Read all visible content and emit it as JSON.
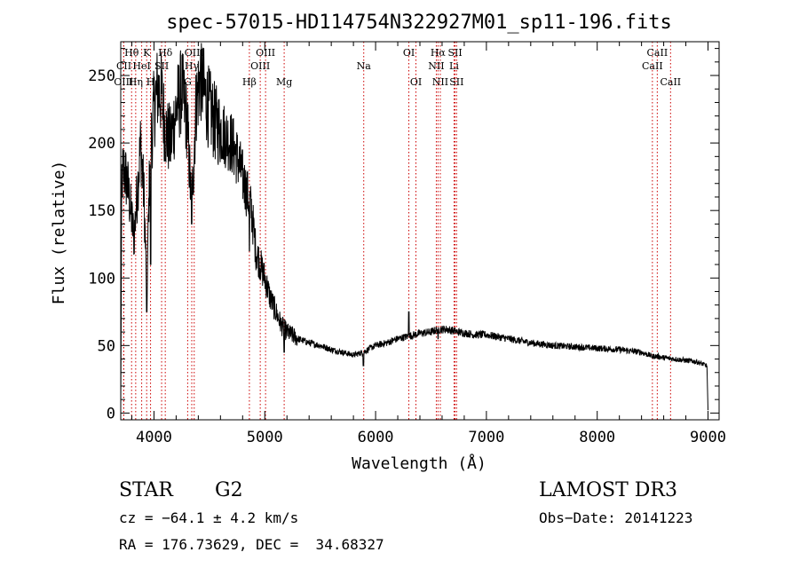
{
  "chart_data": {
    "type": "line",
    "title": "spec-57015-HD114754N322927M01_sp11-196.fits",
    "xlabel": "Wavelength (Å)",
    "ylabel": "Flux (relative)",
    "xlim": [
      3700,
      9100
    ],
    "ylim": [
      -5,
      275
    ],
    "x_ticks": [
      4000,
      5000,
      6000,
      7000,
      8000,
      9000
    ],
    "y_ticks": [
      0,
      50,
      100,
      150,
      200,
      250
    ],
    "grid": false,
    "series_anchors": {
      "x": [
        3700,
        3710,
        3730,
        3760,
        3790,
        3820,
        3850,
        3880,
        3910,
        3935,
        3955,
        3970,
        3985,
        4000,
        4030,
        4070,
        4100,
        4150,
        4200,
        4250,
        4300,
        4340,
        4380,
        4420,
        4460,
        4500,
        4550,
        4600,
        4650,
        4700,
        4750,
        4800,
        4850,
        4880,
        4920,
        4960,
        5000,
        5050,
        5100,
        5150,
        5200,
        5300,
        5400,
        5500,
        5600,
        5700,
        5800,
        5890,
        5950,
        6000,
        6100,
        6200,
        6300,
        6400,
        6500,
        6563,
        6650,
        6750,
        6900,
        7000,
        7200,
        7400,
        7600,
        7800,
        8000,
        8200,
        8400,
        8500,
        8540,
        8600,
        8700,
        8800,
        8900,
        8990,
        9000
      ],
      "y": [
        2,
        175,
        180,
        170,
        150,
        130,
        165,
        200,
        160,
        90,
        160,
        200,
        210,
        225,
        240,
        235,
        210,
        200,
        225,
        240,
        215,
        150,
        230,
        250,
        235,
        225,
        215,
        210,
        205,
        200,
        190,
        175,
        160,
        150,
        120,
        110,
        100,
        85,
        75,
        65,
        60,
        55,
        52,
        50,
        47,
        45,
        43,
        45,
        48,
        50,
        52,
        55,
        57,
        59,
        60,
        62,
        62,
        60,
        58,
        58,
        55,
        52,
        50,
        49,
        48,
        47,
        45,
        42,
        42,
        41,
        40,
        39,
        38,
        35,
        2
      ]
    },
    "spikes": {
      "x": [
        3935,
        3970,
        4340,
        4861,
        5175,
        5890,
        6300,
        6563
      ],
      "y": [
        75,
        110,
        140,
        120,
        45,
        35,
        75,
        55
      ]
    },
    "lines": [
      {
        "label": "Hθ",
        "x": 3798,
        "row": 0
      },
      {
        "label": "CII",
        "x": 3728,
        "row": 1
      },
      {
        "label": "OIII",
        "x": 3726,
        "row": 2
      },
      {
        "label": "Hη",
        "x": 3835,
        "row": 2
      },
      {
        "label": "K",
        "x": 3934,
        "row": 0
      },
      {
        "label": "HeI",
        "x": 3889,
        "row": 1
      },
      {
        "label": "H",
        "x": 3969,
        "row": 2
      },
      {
        "label": "SII",
        "x": 4069,
        "row": 1
      },
      {
        "label": "Hδ",
        "x": 4102,
        "row": 0
      },
      {
        "label": "OIII",
        "x": 4363,
        "row": 0
      },
      {
        "label": "Hγ",
        "x": 4341,
        "row": 1
      },
      {
        "label": "G",
        "x": 4304,
        "row": 2
      },
      {
        "label": "OIII",
        "x": 5007,
        "row": 0
      },
      {
        "label": "OIII",
        "x": 4959,
        "row": 1
      },
      {
        "label": "Hβ",
        "x": 4861,
        "row": 2
      },
      {
        "label": "Mg",
        "x": 5175,
        "row": 2
      },
      {
        "label": "Na",
        "x": 5893,
        "row": 1
      },
      {
        "label": "OI",
        "x": 6300,
        "row": 0
      },
      {
        "label": "OI",
        "x": 6364,
        "row": 2
      },
      {
        "label": "Hα",
        "x": 6563,
        "row": 0
      },
      {
        "label": "NII",
        "x": 6548,
        "row": 1
      },
      {
        "label": "NII",
        "x": 6584,
        "row": 2
      },
      {
        "label": "SII",
        "x": 6717,
        "row": 0
      },
      {
        "label": "Li",
        "x": 6708,
        "row": 1
      },
      {
        "label": "SII",
        "x": 6731,
        "row": 2
      },
      {
        "label": "CaII",
        "x": 8542,
        "row": 0
      },
      {
        "label": "CaII",
        "x": 8498,
        "row": 1
      },
      {
        "label": "CaII",
        "x": 8662,
        "row": 2
      }
    ]
  },
  "info": {
    "object_class": "STAR",
    "subclass": "G2",
    "survey": "LAMOST DR3",
    "cz": "cz = −64.1 ± 4.2 km/s",
    "obs_date": "Obs−Date: 20141223",
    "coords": "RA = 176.73629, DEC =  34.68327"
  },
  "colors": {
    "spectrum": "#000000",
    "line_marker": "#cc0000",
    "axis": "#000000"
  }
}
